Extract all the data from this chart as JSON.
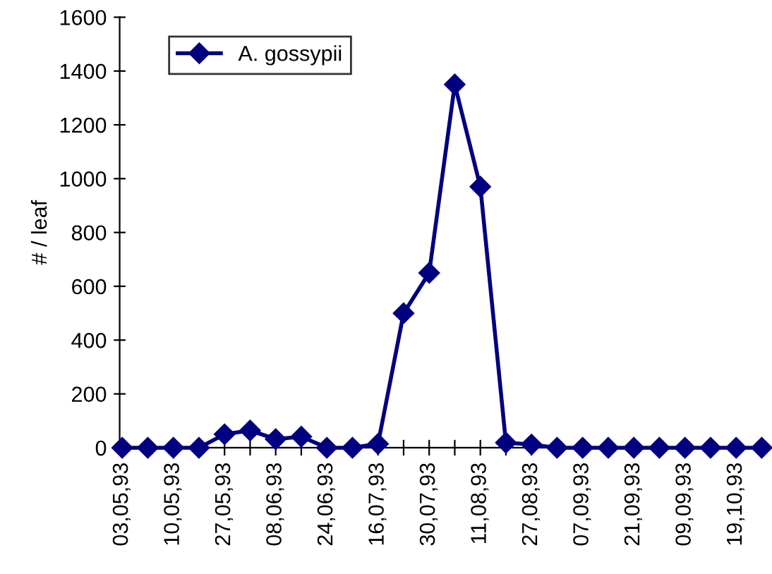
{
  "chart_data": {
    "type": "line",
    "ylabel": "# / leaf",
    "categories": [
      "03,05,93",
      null,
      "10,05,93",
      null,
      "27,05,93",
      null,
      "08,06,93",
      null,
      "24,06,93",
      null,
      "16,07,93",
      null,
      "30,07,93",
      null,
      "11,08,93",
      null,
      "27,08,93",
      null,
      "07,09,93",
      null,
      "21,09,93",
      null,
      "09,09,93",
      null,
      "19,10,93",
      null
    ],
    "series": [
      {
        "name": "A. gossypii",
        "color": "#000080",
        "values": [
          0,
          0,
          0,
          0,
          50,
          64,
          32,
          41,
          0,
          0,
          14,
          500,
          650,
          1350,
          970,
          19,
          12,
          0,
          0,
          0,
          0,
          0,
          0,
          0,
          0,
          0
        ]
      }
    ],
    "ylim": [
      0,
      1600
    ],
    "yticks": [
      0,
      200,
      400,
      600,
      800,
      1000,
      1200,
      1400,
      1600
    ],
    "marker": "diamond",
    "line_style": "solid",
    "legend": "top left",
    "grid": false
  }
}
